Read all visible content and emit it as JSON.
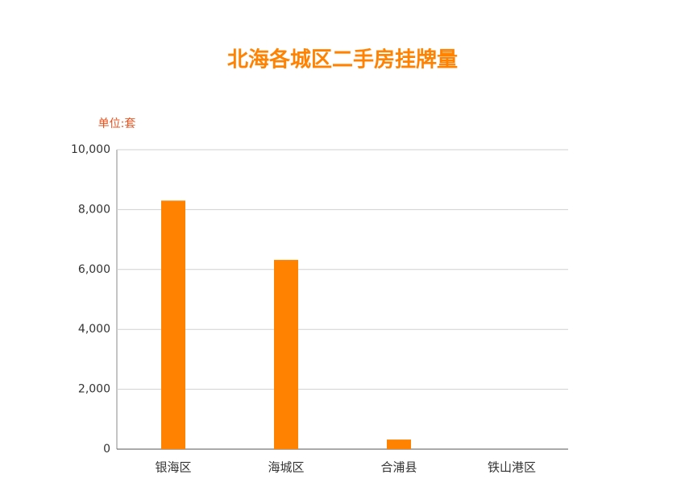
{
  "chart_data": {
    "type": "bar",
    "title": "北海各城区二手房挂牌量",
    "y_unit_label": "单位:套",
    "categories": [
      "银海区",
      "海城区",
      "合浦县",
      "铁山港区"
    ],
    "values": [
      8300,
      6320,
      320,
      0
    ],
    "color": "#ff8200",
    "ylim": [
      0,
      10000
    ],
    "yticks": [
      0,
      {
        "value": 2000,
        "label": "2,000"
      },
      {
        "value": 4000,
        "label": "4,000"
      },
      {
        "value": 6000,
        "label": "6,000"
      },
      {
        "value": 8000,
        "label": "8,000"
      },
      {
        "value": 10000,
        "label": "10,000"
      }
    ],
    "grid": true
  }
}
